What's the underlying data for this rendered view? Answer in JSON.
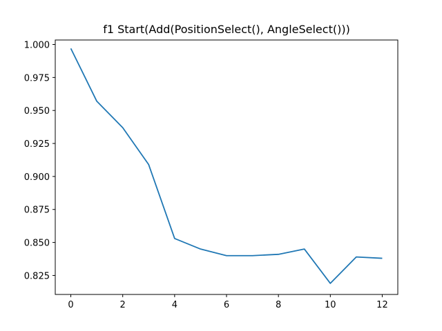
{
  "chart_data": {
    "type": "line",
    "title": "f1 Start(Add(PositionSelect(), AngleSelect()))",
    "xlabel": "",
    "ylabel": "",
    "x": [
      0,
      1,
      2,
      3,
      4,
      5,
      6,
      7,
      8,
      9,
      10,
      11,
      12
    ],
    "series": [
      {
        "color": "#1f77b4",
        "values": [
          0.997,
          0.957,
          0.937,
          0.909,
          0.853,
          0.845,
          0.84,
          0.84,
          0.841,
          0.845,
          0.819,
          0.839,
          0.838
        ]
      }
    ],
    "xlim": [
      -0.6,
      12.6
    ],
    "ylim": [
      0.8106,
      1.0034
    ],
    "xticks": [
      "0",
      "2",
      "4",
      "6",
      "8",
      "10",
      "12"
    ],
    "yticks": [
      "0.825",
      "0.850",
      "0.875",
      "0.900",
      "0.925",
      "0.950",
      "0.975",
      "1.000"
    ],
    "grid": false
  }
}
